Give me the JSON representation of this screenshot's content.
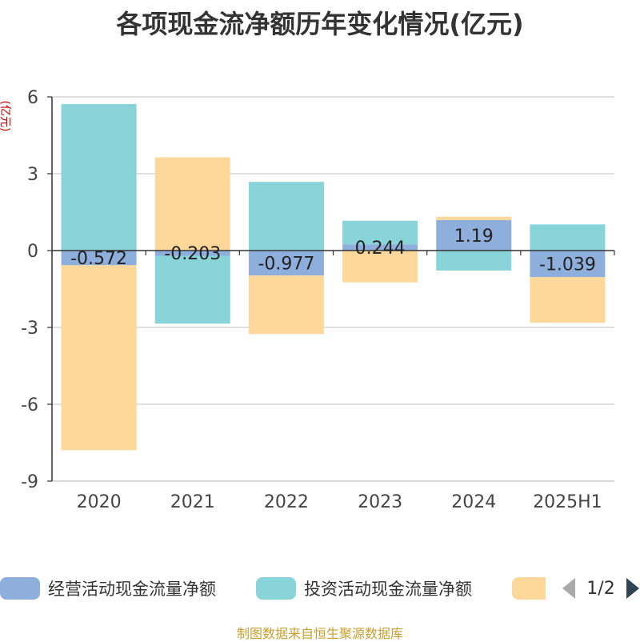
{
  "title": "各项现金流净额历年变化情况(亿元)",
  "source": "制图数据来自恒生聚源数据库",
  "legend": {
    "page": "1/2",
    "prev_icon": "triangle-left-icon",
    "next_icon": "triangle-right-icon",
    "prev_color": "#aaaaaa",
    "next_color": "#2f4554"
  },
  "chart_data": {
    "type": "bar",
    "stacked": true,
    "title": "各项现金流净额历年变化情况(亿元)",
    "ylabel": "(亿元)",
    "xlabel": "",
    "categories": [
      "2020",
      "2021",
      "2022",
      "2023",
      "2024",
      "2025H1"
    ],
    "yticks": [
      6,
      3,
      0,
      -3,
      -6,
      -9
    ],
    "ylim": [
      -9,
      6
    ],
    "grid": true,
    "legend_position": "bottom",
    "series": [
      {
        "name": "经营活动现金流量净额",
        "color": "#8eaedc",
        "values": [
          -0.572,
          -0.203,
          -0.977,
          0.244,
          1.19,
          -1.039
        ],
        "labels": [
          "-0.572",
          "-0.203",
          "-0.977",
          "0.244",
          "1.19",
          "-1.039"
        ]
      },
      {
        "name": "投资活动现金流量净额",
        "color": "#88d4d8",
        "values": [
          5.72,
          -2.65,
          2.68,
          0.92,
          -0.78,
          1.02
        ]
      },
      {
        "name": "",
        "color": "#fdd89a",
        "values": [
          -7.22,
          3.64,
          -2.28,
          -1.24,
          0.13,
          -1.78
        ]
      }
    ]
  }
}
